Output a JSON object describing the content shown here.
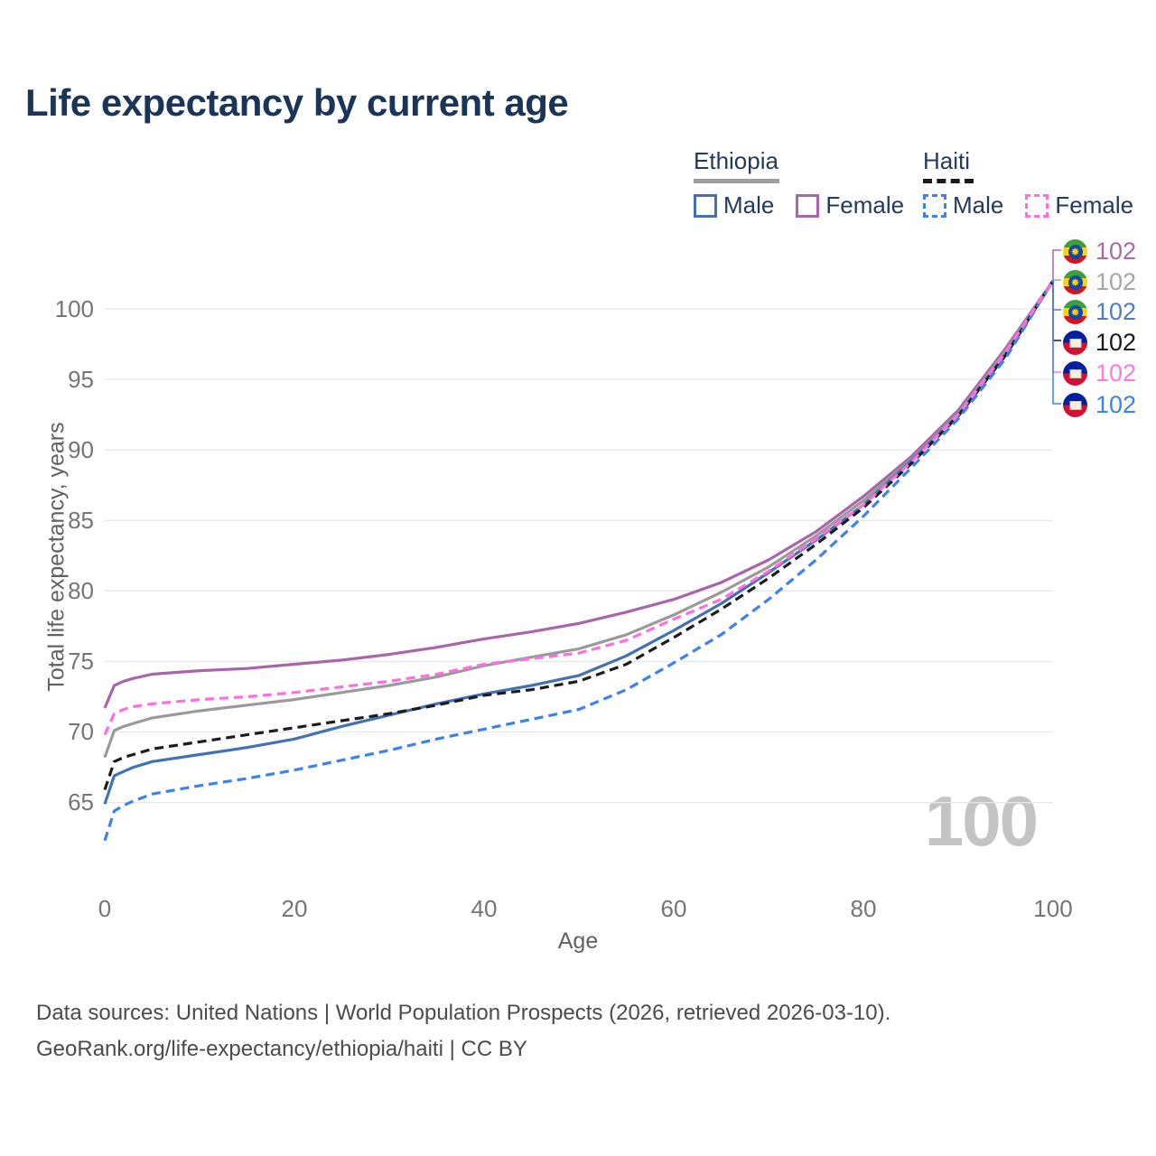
{
  "title": "Life expectancy by current age",
  "legend": {
    "groups": [
      {
        "country": "Ethiopia",
        "line_style": "solid",
        "underline_color": "#9e9e9e",
        "items": [
          {
            "label": "Male",
            "color": "#4472b0",
            "dash": "solid"
          },
          {
            "label": "Female",
            "color": "#a965a9",
            "dash": "solid"
          }
        ]
      },
      {
        "country": "Haiti",
        "line_style": "dashed",
        "underline_color": "#1a1a1a",
        "items": [
          {
            "label": "Male",
            "color": "#3b82ea",
            "dash": "dashed"
          },
          {
            "label": "Female",
            "color": "#ff6ee0",
            "dash": "dashed"
          }
        ]
      }
    ]
  },
  "chart_data": {
    "type": "line",
    "title": "Life expectancy by current age",
    "xlabel": "Age",
    "ylabel": "Total life expectancy, years",
    "xlim": [
      0,
      100
    ],
    "ylim": [
      62,
      103
    ],
    "x_ticks": [
      0,
      20,
      40,
      60,
      80,
      100
    ],
    "y_ticks": [
      100,
      95,
      90,
      85,
      80,
      75,
      70,
      65
    ],
    "grid": "horizontal",
    "legend_position": "top-right",
    "watermark": "100",
    "x": [
      0,
      1,
      2,
      3,
      5,
      10,
      15,
      20,
      25,
      30,
      35,
      40,
      45,
      50,
      55,
      60,
      65,
      70,
      75,
      80,
      85,
      90,
      95,
      100
    ],
    "series": [
      {
        "name": "Ethiopia Female",
        "color": "#a965a9",
        "dash": "solid",
        "values": [
          71.7,
          73.3,
          73.6,
          73.8,
          74.1,
          74.35,
          74.5,
          74.8,
          75.1,
          75.5,
          76.0,
          76.6,
          77.1,
          77.7,
          78.5,
          79.4,
          80.6,
          82.2,
          84.2,
          86.7,
          89.5,
          92.8,
          97.2,
          102
        ]
      },
      {
        "name": "Ethiopia Both sexes",
        "color": "#9a9a9a",
        "dash": "solid",
        "values": [
          68.2,
          70.1,
          70.4,
          70.6,
          71.0,
          71.5,
          71.9,
          72.3,
          72.8,
          73.3,
          73.9,
          74.7,
          75.3,
          75.9,
          76.9,
          78.3,
          79.9,
          81.7,
          83.9,
          86.4,
          89.3,
          92.6,
          97.0,
          102
        ]
      },
      {
        "name": "Ethiopia Male",
        "color": "#4472b0",
        "dash": "solid",
        "values": [
          64.9,
          66.9,
          67.2,
          67.5,
          67.9,
          68.4,
          68.9,
          69.5,
          70.4,
          71.2,
          72.0,
          72.7,
          73.3,
          74.0,
          75.4,
          77.2,
          79.1,
          81.3,
          83.6,
          86.1,
          89.2,
          92.5,
          96.8,
          102
        ]
      },
      {
        "name": "Haiti Both sexes",
        "color": "#1c1c1c",
        "dash": "dashed",
        "values": [
          65.9,
          67.9,
          68.2,
          68.4,
          68.8,
          69.3,
          69.8,
          70.3,
          70.8,
          71.3,
          71.9,
          72.6,
          73.0,
          73.6,
          74.8,
          76.7,
          78.7,
          80.9,
          83.3,
          85.9,
          89.0,
          92.4,
          96.7,
          102
        ]
      },
      {
        "name": "Haiti Male",
        "color": "#3b82ea",
        "dash": "dashed",
        "values": [
          62.3,
          64.4,
          64.8,
          65.1,
          65.6,
          66.2,
          66.7,
          67.3,
          68.0,
          68.7,
          69.5,
          70.2,
          70.9,
          71.6,
          73.0,
          74.9,
          76.9,
          79.4,
          82.2,
          85.3,
          88.7,
          92.2,
          96.5,
          102
        ]
      },
      {
        "name": "Haiti Female",
        "color": "#ff6ee0",
        "dash": "dashed",
        "values": [
          69.8,
          71.3,
          71.6,
          71.8,
          72.0,
          72.3,
          72.5,
          72.8,
          73.2,
          73.6,
          74.1,
          74.8,
          75.2,
          75.6,
          76.5,
          78.0,
          79.4,
          81.4,
          83.7,
          86.1,
          89.1,
          92.5,
          96.9,
          102
        ]
      }
    ]
  },
  "end_labels": [
    {
      "value": "102",
      "color": "#aa68aa",
      "flag": "ethiopia",
      "series": "Ethiopia Female"
    },
    {
      "value": "102",
      "color": "#a6a6a6",
      "flag": "ethiopia",
      "series": "Ethiopia Both sexes"
    },
    {
      "value": "102",
      "color": "#4f7cc2",
      "flag": "ethiopia",
      "series": "Ethiopia Male"
    },
    {
      "value": "102",
      "color": "#1a1a1a",
      "flag": "haiti",
      "series": "Haiti Both sexes"
    },
    {
      "value": "102",
      "color": "#ff7ade",
      "flag": "haiti",
      "series": "Haiti Female"
    },
    {
      "value": "102",
      "color": "#3b82ea",
      "flag": "haiti",
      "series": "Haiti Male"
    }
  ],
  "footer": {
    "line1": "Data sources: United Nations | World Population Prospects (2026, retrieved 2026-03-10).",
    "line2": "GeoRank.org/life-expectancy/ethiopia/haiti | CC BY"
  }
}
